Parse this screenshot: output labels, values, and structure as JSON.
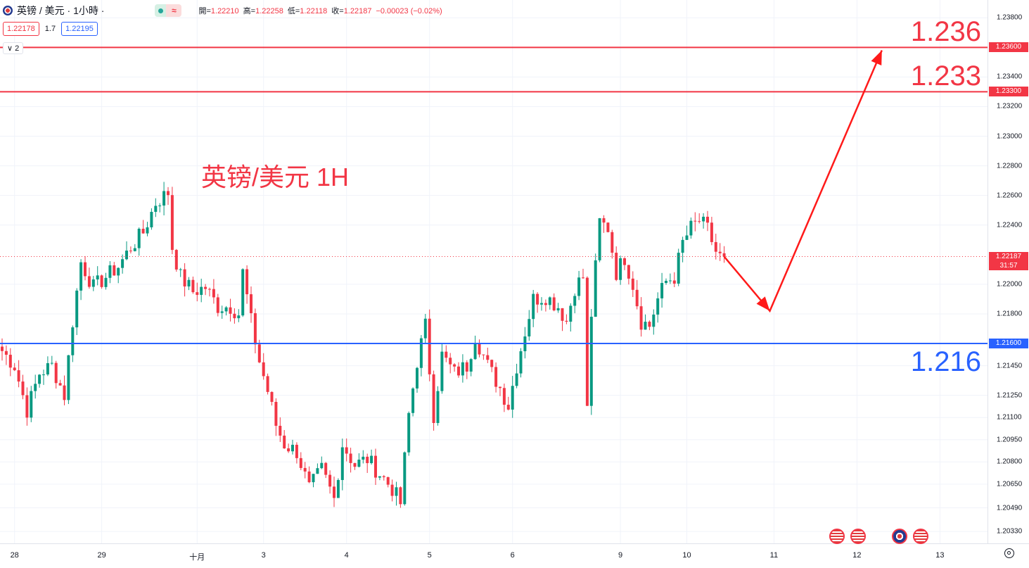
{
  "header": {
    "symbol": "英镑 / 美元 · 1小時 ·",
    "badge_icon": "≈",
    "ohlc": [
      {
        "k": "開=",
        "v": "1.22210"
      },
      {
        "k": "高=",
        "v": "1.22258"
      },
      {
        "k": "低=",
        "v": "1.22118"
      },
      {
        "k": "收=",
        "v": "1.22187"
      },
      {
        "k": "",
        "v": "−0.00023 (−0.02%)"
      }
    ]
  },
  "trade": {
    "sell": "1.22178",
    "spread": "1.7",
    "buy": "1.22195"
  },
  "indicators_toggle": "∨ 2",
  "chart_data": {
    "type": "candlestick",
    "title": "英镑/美元 1H",
    "ylim": [
      1.2025,
      1.2392
    ],
    "y_ticks": [
      "1.23800",
      "1.23400",
      "1.23200",
      "1.23000",
      "1.22800",
      "1.22600",
      "1.22400",
      "1.22000",
      "1.21800",
      "1.21450",
      "1.21250",
      "1.21100",
      "1.20950",
      "1.20800",
      "1.20650",
      "1.20490",
      "1.20330"
    ],
    "x_ticks": [
      {
        "label": "28",
        "i": 3
      },
      {
        "label": "29",
        "i": 24
      },
      {
        "label": "十月",
        "i": 47
      },
      {
        "label": "3",
        "i": 63
      },
      {
        "label": "4",
        "i": 83
      },
      {
        "label": "5",
        "i": 103
      },
      {
        "label": "6",
        "i": 123
      },
      {
        "label": "9",
        "i": 149
      },
      {
        "label": "10",
        "i": 165
      },
      {
        "label": "11",
        "i": 186
      },
      {
        "label": "12",
        "i": 206
      },
      {
        "label": "13",
        "i": 226
      }
    ],
    "levels": [
      {
        "value": 1.236,
        "label": "1.23600",
        "annotation": "1.236",
        "color": "#f23645"
      },
      {
        "value": 1.233,
        "label": "1.23300",
        "annotation": "1.233",
        "color": "#f23645"
      },
      {
        "value": 1.216,
        "label": "1.21600",
        "annotation": "1.216",
        "color": "#2962ff"
      }
    ],
    "last_price": {
      "value": 1.22187,
      "label": "1.22187",
      "countdown": "31:57",
      "color": "#f23645"
    },
    "path": [
      [
        0,
        1.2155
      ],
      [
        3,
        1.2145
      ],
      [
        6,
        1.2115
      ],
      [
        9,
        1.214
      ],
      [
        12,
        1.2145
      ],
      [
        15,
        1.2125
      ],
      [
        17,
        1.2175
      ],
      [
        19,
        1.2215
      ],
      [
        22,
        1.2198
      ],
      [
        25,
        1.2205
      ],
      [
        28,
        1.2212
      ],
      [
        31,
        1.2225
      ],
      [
        34,
        1.2235
      ],
      [
        37,
        1.2255
      ],
      [
        40,
        1.2262
      ],
      [
        41,
        1.2225
      ],
      [
        43,
        1.2205
      ],
      [
        46,
        1.2195
      ],
      [
        49,
        1.2198
      ],
      [
        52,
        1.2185
      ],
      [
        55,
        1.2185
      ],
      [
        57,
        1.218
      ],
      [
        58,
        1.2208
      ],
      [
        60,
        1.2175
      ],
      [
        62,
        1.2148
      ],
      [
        64,
        1.2128
      ],
      [
        66,
        1.2105
      ],
      [
        68,
        1.2092
      ],
      [
        71,
        1.2087
      ],
      [
        74,
        1.2062
      ],
      [
        77,
        1.2075
      ],
      [
        80,
        1.2055
      ],
      [
        82,
        1.2092
      ],
      [
        85,
        1.2078
      ],
      [
        88,
        1.2082
      ],
      [
        91,
        1.2072
      ],
      [
        94,
        1.2062
      ],
      [
        96,
        1.2052
      ],
      [
        98,
        1.2112
      ],
      [
        100,
        1.2148
      ],
      [
        102,
        1.2172
      ],
      [
        104,
        1.2112
      ],
      [
        106,
        1.2152
      ],
      [
        109,
        1.214
      ],
      [
        112,
        1.2145
      ],
      [
        114,
        1.2165
      ],
      [
        117,
        1.2145
      ],
      [
        120,
        1.213
      ],
      [
        122,
        1.2118
      ],
      [
        124,
        1.2145
      ],
      [
        126,
        1.2168
      ],
      [
        128,
        1.219
      ],
      [
        131,
        1.2192
      ],
      [
        134,
        1.2185
      ],
      [
        136,
        1.2175
      ],
      [
        138,
        1.2198
      ],
      [
        140,
        1.2205
      ],
      [
        141,
        1.2115
      ],
      [
        142,
        1.218
      ],
      [
        144,
        1.2242
      ],
      [
        146,
        1.2238
      ],
      [
        148,
        1.2208
      ],
      [
        150,
        1.2218
      ],
      [
        152,
        1.22
      ],
      [
        154,
        1.2175
      ],
      [
        156,
        1.2172
      ],
      [
        158,
        1.219
      ],
      [
        160,
        1.2202
      ],
      [
        162,
        1.2205
      ],
      [
        164,
        1.2228
      ],
      [
        166,
        1.2238
      ],
      [
        168,
        1.2243
      ],
      [
        170,
        1.2237
      ],
      [
        172,
        1.2222
      ],
      [
        174,
        1.2215
      ]
    ],
    "forecast": [
      [
        174,
        1.22187
      ],
      [
        185,
        1.2182
      ],
      [
        212,
        1.2358
      ]
    ]
  },
  "event_icons": [
    "us-flag",
    "us-flag",
    "uk-flag",
    "us-flag"
  ]
}
